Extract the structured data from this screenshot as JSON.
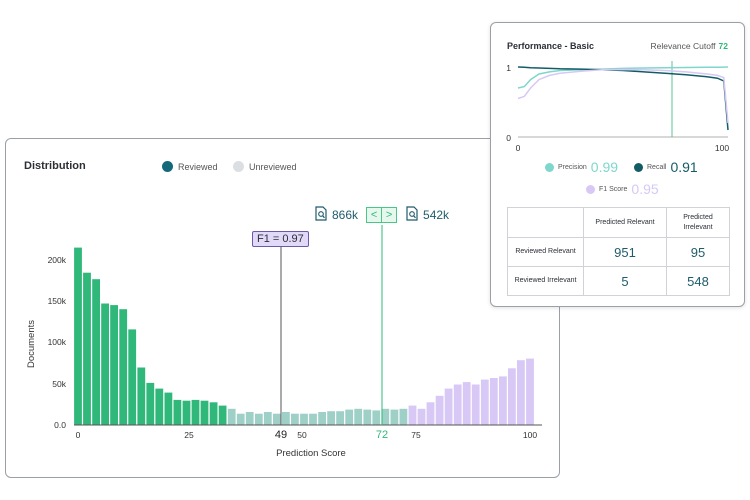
{
  "distribution": {
    "title": "Distribution",
    "legend": [
      {
        "label": "Reviewed",
        "color": "#13697a"
      },
      {
        "label": "Unreviewed",
        "color": "#dcdfe2"
      }
    ],
    "xlabel": "Prediction Score",
    "ylabel": "Documents",
    "x_ticks": [
      "0",
      "25",
      "50",
      "75",
      "100"
    ],
    "y_ticks": [
      "0.0",
      "50k",
      "100k",
      "150k",
      "200k"
    ],
    "f1_marker": {
      "label": "F1 = 0.97",
      "value": "49"
    },
    "cutoff_marker": {
      "value": "72",
      "above": "866k",
      "below": "542k",
      "prev_glyph": "<",
      "next_glyph": ">"
    }
  },
  "performance": {
    "title": "Performance - Basic",
    "cutoff_label": "Relevance Cutoff",
    "cutoff_value": "72",
    "y_ticks": [
      "1",
      "0"
    ],
    "x_ticks": [
      "0",
      "100"
    ],
    "metrics": [
      {
        "label": "Precision",
        "value": "0.99",
        "color": "#7fd6cc"
      },
      {
        "label": "Recall",
        "value": "0.91",
        "color": "#135c66"
      },
      {
        "label": "F1 Score",
        "value": "0.95",
        "color": "#d7c8f5"
      }
    ],
    "confusion_matrix": {
      "col_headers": [
        "Predicted Relevant",
        "Predicted Irrelevant"
      ],
      "rows": [
        {
          "label": "Reviewed Relevant",
          "values": [
            "951",
            "95"
          ]
        },
        {
          "label": "Reviewed Irrelevant",
          "values": [
            "5",
            "548"
          ]
        }
      ]
    }
  },
  "chart_data": [
    {
      "type": "bar",
      "title": "Distribution",
      "xlabel": "Prediction Score",
      "ylabel": "Documents",
      "xlim": [
        0,
        100
      ],
      "ylim": [
        0,
        215000
      ],
      "bin_width": 2,
      "x": [
        0,
        2,
        4,
        6,
        8,
        10,
        12,
        14,
        16,
        18,
        20,
        22,
        24,
        26,
        28,
        30,
        32,
        34,
        36,
        38,
        40,
        42,
        44,
        46,
        48,
        50,
        52,
        54,
        56,
        58,
        60,
        62,
        64,
        66,
        68,
        70,
        72,
        74,
        76,
        78,
        80,
        82,
        84,
        86,
        88,
        90,
        92,
        94,
        96,
        98,
        100
      ],
      "values": [
        219000,
        188000,
        180000,
        150000,
        148000,
        143000,
        118000,
        71000,
        52000,
        45000,
        40000,
        31000,
        30000,
        31000,
        30000,
        28000,
        24000,
        20000,
        14000,
        16000,
        14000,
        16000,
        14000,
        16000,
        14000,
        14000,
        14000,
        16000,
        17000,
        17000,
        19000,
        20000,
        19000,
        18000,
        20000,
        19000,
        20000,
        24000,
        20000,
        28000,
        36000,
        45000,
        50000,
        53000,
        50000,
        56000,
        58000,
        60000,
        70000,
        80000,
        82000
      ],
      "series_colors": {
        "reviewed": "#2fb879",
        "transition": "#9fd0c8",
        "unreviewed": "#d7c8f5"
      },
      "markers": {
        "f1_optimal": 49,
        "cutoff": 72
      }
    },
    {
      "type": "line",
      "title": "Performance - Basic",
      "xlim": [
        0,
        100
      ],
      "ylim": [
        0,
        1
      ],
      "x": [
        0,
        3,
        6,
        10,
        15,
        20,
        30,
        40,
        50,
        60,
        70,
        80,
        90,
        95,
        98,
        100
      ],
      "series": [
        {
          "name": "Precision",
          "color": "#7fd6cc",
          "values": [
            0.7,
            0.72,
            0.82,
            0.9,
            0.93,
            0.95,
            0.96,
            0.97,
            0.98,
            0.985,
            0.99,
            0.993,
            0.996,
            0.997,
            0.998,
            1.0
          ]
        },
        {
          "name": "Recall",
          "color": "#135c66",
          "values": [
            1.0,
            0.995,
            0.99,
            0.985,
            0.98,
            0.975,
            0.97,
            0.96,
            0.95,
            0.93,
            0.91,
            0.89,
            0.86,
            0.84,
            0.8,
            0.1
          ]
        },
        {
          "name": "F1 Score",
          "color": "#d7c8f5",
          "values": [
            0.55,
            0.58,
            0.7,
            0.82,
            0.88,
            0.91,
            0.94,
            0.96,
            0.965,
            0.96,
            0.95,
            0.93,
            0.9,
            0.88,
            0.85,
            0.2
          ]
        }
      ],
      "markers": {
        "cutoff": 72
      }
    }
  ]
}
